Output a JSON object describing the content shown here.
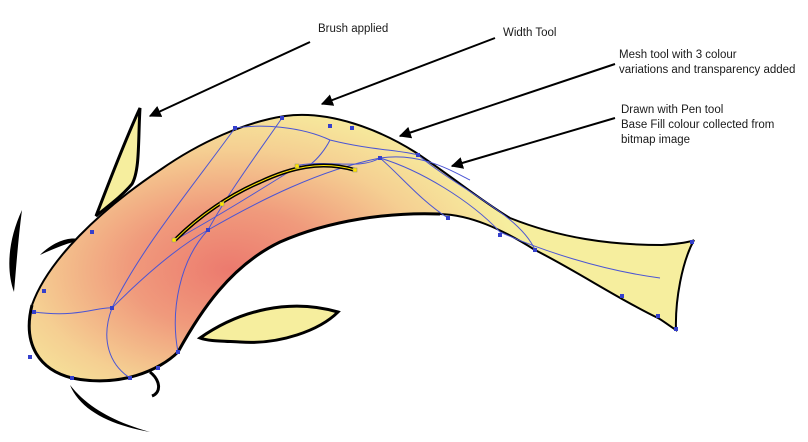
{
  "annotations": [
    {
      "id": "brush",
      "lines": [
        "Brush applied"
      ]
    },
    {
      "id": "width",
      "lines": [
        "Width Tool"
      ]
    },
    {
      "id": "mesh",
      "lines": [
        "Mesh tool with 3 colour",
        "variations and transparency added"
      ]
    },
    {
      "id": "pen",
      "lines": [
        "Drawn with Pen tool",
        "Base Fill colour collected from",
        "bitmap image"
      ]
    }
  ],
  "colors": {
    "fill_base": "#f6ee9e",
    "fill_mid": "#f2b984",
    "fill_center": "#ec7a6e",
    "outline": "#000000",
    "mesh_lines": "#4b55d4",
    "mesh_points": "#3540cc",
    "selected_path": "#ffe600",
    "arrows": "#000000"
  }
}
